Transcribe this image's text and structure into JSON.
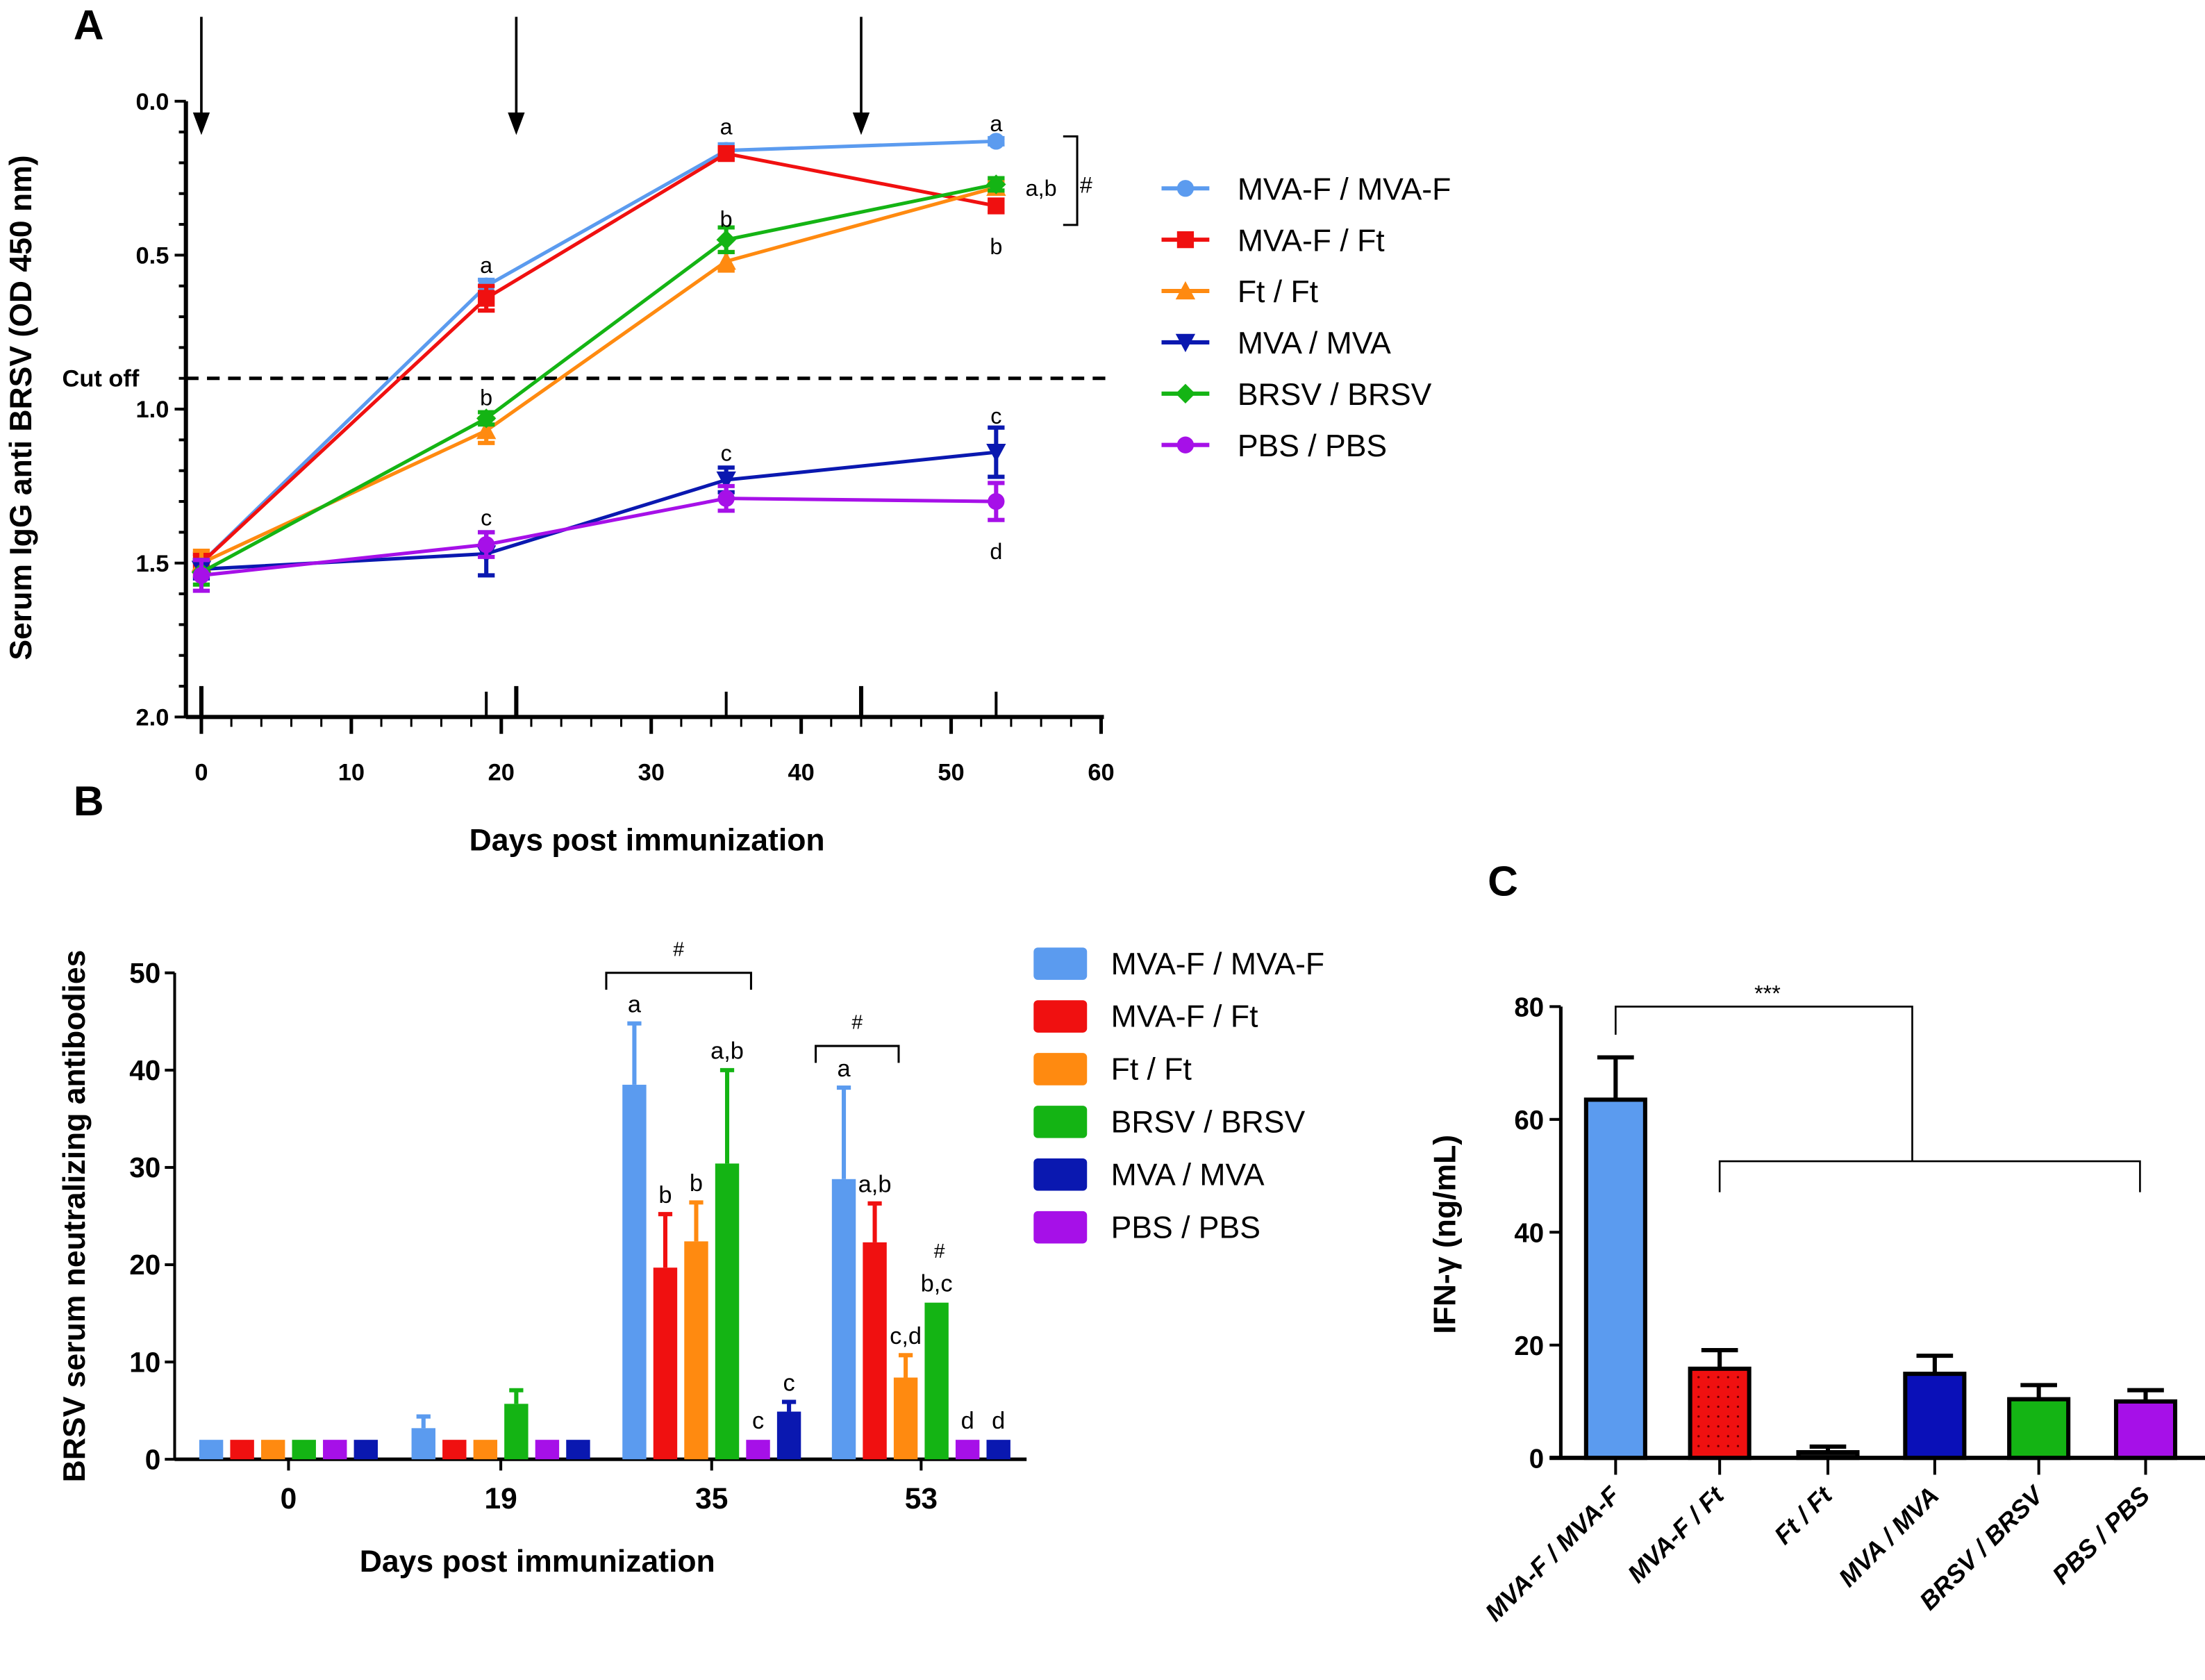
{
  "figure": {
    "panel_letters": [
      "A",
      "B",
      "C"
    ]
  },
  "chart_data": [
    {
      "panel": "A",
      "type": "line",
      "title": "",
      "xlabel": "Days post immunization",
      "ylabel": "Serum IgG anti BRSV (OD 450 nm)",
      "xlim": [
        0,
        60
      ],
      "ylim": [
        0.0,
        2.0
      ],
      "y_inverted": true,
      "x_ticks": [
        "0",
        "10",
        "20",
        "30",
        "40",
        "50",
        "60"
      ],
      "y_ticks": [
        "0.0",
        "0.5",
        "1.0",
        "1.5",
        "2.0"
      ],
      "x": [
        0,
        19,
        35,
        53
      ],
      "immunization_arrows_days": [
        0,
        21,
        44
      ],
      "cutoff": {
        "label": "Cut off",
        "value": 0.9
      },
      "legend_position": "right",
      "series": [
        {
          "name": "MVA-F / MVA-F",
          "color": "#5b9bef",
          "marker": "circle",
          "values": [
            1.5,
            0.6,
            0.16,
            0.13
          ],
          "errors": [
            0.03,
            0.02,
            0.02,
            0.01
          ]
        },
        {
          "name": "MVA-F / Ft",
          "color": "#f01010",
          "marker": "square",
          "values": [
            1.5,
            0.64,
            0.17,
            0.34
          ],
          "errors": [
            0.03,
            0.04,
            0.02,
            0.02
          ]
        },
        {
          "name": "Ft / Ft",
          "color": "#ff8a10",
          "marker": "triangle-up",
          "values": [
            1.5,
            1.07,
            0.52,
            0.28
          ],
          "errors": [
            0.04,
            0.04,
            0.03,
            0.02
          ]
        },
        {
          "name": "MVA / MVA",
          "color": "#0a18b0",
          "marker": "triangle-down",
          "values": [
            1.52,
            1.47,
            1.23,
            1.14
          ],
          "errors": [
            0.03,
            0.07,
            0.04,
            0.08
          ]
        },
        {
          "name": "BRSV / BRSV",
          "color": "#14b414",
          "marker": "diamond",
          "values": [
            1.53,
            1.03,
            0.45,
            0.27
          ],
          "errors": [
            0.04,
            0.02,
            0.04,
            0.02
          ]
        },
        {
          "name": "PBS / PBS",
          "color": "#a610e8",
          "marker": "circle",
          "values": [
            1.54,
            1.44,
            1.29,
            1.3
          ],
          "errors": [
            0.05,
            0.04,
            0.04,
            0.06
          ]
        }
      ],
      "annotations": [
        {
          "text": "a",
          "day": 19,
          "y": 0.53
        },
        {
          "text": "b",
          "day": 19,
          "y": 0.96
        },
        {
          "text": "c",
          "day": 19,
          "y": 1.35
        },
        {
          "text": "a",
          "day": 35,
          "y": 0.08
        },
        {
          "text": "b",
          "day": 35,
          "y": 0.38
        },
        {
          "text": "c",
          "day": 35,
          "y": 1.14
        },
        {
          "text": "a",
          "day": 53,
          "y": 0.07
        },
        {
          "text": "a,b",
          "day": 56,
          "y": 0.28
        },
        {
          "text": "b",
          "day": 53,
          "y": 0.47
        },
        {
          "text": "c",
          "day": 53,
          "y": 1.02
        },
        {
          "text": "d",
          "day": 53,
          "y": 1.46
        },
        {
          "text": "#",
          "day": 59,
          "y": 0.27
        }
      ]
    },
    {
      "panel": "B",
      "type": "bar",
      "title": "",
      "xlabel": "Days post immunization",
      "ylabel": "BRSV serum neutralizing antibodies",
      "ylim": [
        0,
        50
      ],
      "y_ticks": [
        "0",
        "10",
        "20",
        "30",
        "40",
        "50"
      ],
      "categories": [
        "0",
        "19",
        "35",
        "53"
      ],
      "legend_position": "right",
      "legend": [
        {
          "name": "MVA-F / MVA-F",
          "color": "#5b9bef"
        },
        {
          "name": "MVA-F / Ft",
          "color": "#f01010"
        },
        {
          "name": "Ft / Ft",
          "color": "#ff8a10"
        },
        {
          "name": "BRSV / BRSV",
          "color": "#14b414"
        },
        {
          "name": "MVA / MVA",
          "color": "#0a18b0"
        },
        {
          "name": "PBS / PBS",
          "color": "#a610e8"
        }
      ],
      "series": [
        {
          "name": "MVA-F / MVA-F",
          "color": "#5b9bef",
          "values": [
            2,
            3.2,
            38.5,
            28.8
          ],
          "errors": [
            0,
            1.2,
            6.3,
            9.4
          ],
          "labels": [
            "",
            "",
            "a",
            "a"
          ]
        },
        {
          "name": "MVA-F / Ft",
          "color": "#f01010",
          "values": [
            2,
            2,
            19.7,
            22.3
          ],
          "errors": [
            0,
            0,
            5.5,
            4.0
          ],
          "labels": [
            "",
            "",
            "b",
            "a,b"
          ]
        },
        {
          "name": "Ft / Ft",
          "color": "#ff8a10",
          "values": [
            2,
            2,
            22.4,
            8.4
          ],
          "errors": [
            0,
            0,
            4.0,
            2.3
          ],
          "labels": [
            "",
            "",
            "b",
            "c,d"
          ]
        },
        {
          "name": "BRSV / BRSV",
          "color": "#14b414",
          "values": [
            2,
            5.7,
            30.4,
            16.1
          ],
          "errors": [
            0,
            1.4,
            9.6,
            0
          ],
          "labels": [
            "",
            "",
            "a,b",
            "b,c"
          ]
        },
        {
          "name": "PBS / PBS",
          "color": "#a610e8",
          "values": [
            2,
            2,
            2,
            2
          ],
          "errors": [
            0,
            0,
            0,
            0
          ],
          "labels": [
            "",
            "",
            "c",
            "d"
          ]
        },
        {
          "name": "MVA / MVA",
          "color": "#0a18b0",
          "values": [
            2,
            2,
            4.9,
            2
          ],
          "errors": [
            0,
            0,
            1.0,
            0
          ],
          "labels": [
            "",
            "",
            "c",
            "d"
          ]
        }
      ],
      "brackets": [
        {
          "category": "35",
          "from_series": 0,
          "to_series": 3,
          "label": "#"
        },
        {
          "category": "53",
          "from_series": 0,
          "to_series": 1,
          "label": "#"
        }
      ],
      "extra_marks": [
        {
          "category": "53",
          "series": 3,
          "text": "#"
        }
      ]
    },
    {
      "panel": "C",
      "type": "bar",
      "title": "",
      "xlabel": "",
      "ylabel": "IFN-γ (ng/mL)",
      "ylim": [
        0,
        80
      ],
      "y_ticks": [
        "0",
        "20",
        "40",
        "60",
        "80"
      ],
      "categories": [
        "MVA-F / MVA-F",
        "MVA-F / Ft",
        "Ft / Ft",
        "MVA / MVA",
        "BRSV / BRSV",
        "PBS / PBS"
      ],
      "colors": [
        "#5b9bef",
        "#f01010",
        "#111111",
        "#0a10b8",
        "#14b414",
        "#a610e8"
      ],
      "values": [
        63.5,
        15.8,
        1.0,
        14.9,
        10.4,
        10.0
      ],
      "errors": [
        7.5,
        3.3,
        1.0,
        3.2,
        2.5,
        2.0
      ],
      "significance": {
        "label": "***",
        "from": 0,
        "to_group": [
          1,
          5
        ]
      }
    }
  ]
}
